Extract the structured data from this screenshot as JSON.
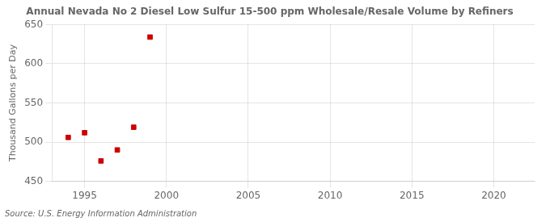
{
  "chart_data": {
    "type": "scatter",
    "title": "Annual Nevada No 2 Diesel Low Sulfur 15-500 ppm Wholesale/Resale Volume by Refiners",
    "ylabel": "Thousand Gallons per Day",
    "annotation": "Source: U.S. Energy Information Administration",
    "x": [
      1994,
      1995,
      1996,
      1997,
      1998,
      1999
    ],
    "values": [
      506,
      512,
      476,
      490,
      519,
      634
    ],
    "color": "#cc0000",
    "marker": "square",
    "xlim": [
      1993,
      2022.5
    ],
    "ylim": [
      450,
      650
    ],
    "xticks": [
      1995,
      2000,
      2005,
      2010,
      2015,
      2020
    ],
    "yticks": [
      450,
      500,
      550,
      600,
      650
    ],
    "grid": true
  }
}
